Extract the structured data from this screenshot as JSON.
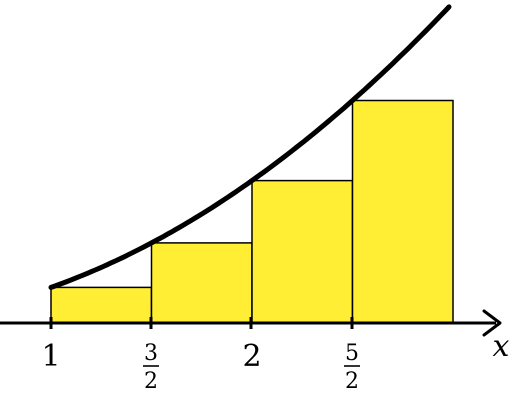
{
  "figure": {
    "x_axis_name": "x"
  },
  "tick_labels": {
    "one": "1",
    "three_halves_num": "3",
    "three_halves_den": "2",
    "two": "2",
    "five_halves_num": "5",
    "five_halves_den": "2"
  },
  "chart_data": {
    "type": "area",
    "curve": {
      "samples_x": [
        1.0,
        1.5,
        2.0,
        2.5,
        3.0
      ],
      "samples_y": [
        1.0,
        2.25,
        4.0,
        6.25,
        9.0
      ]
    },
    "rectangles": [
      {
        "x_start": 1.0,
        "x_end": 1.5,
        "height": 1.0
      },
      {
        "x_start": 1.5,
        "x_end": 2.0,
        "height": 2.25
      },
      {
        "x_start": 2.0,
        "x_end": 2.5,
        "height": 4.0
      },
      {
        "x_start": 2.5,
        "x_end": 3.0,
        "height": 6.25
      }
    ],
    "colors": {
      "rect_fill": "#FFEE33",
      "curve": "#000000",
      "axis": "#000000"
    }
  }
}
